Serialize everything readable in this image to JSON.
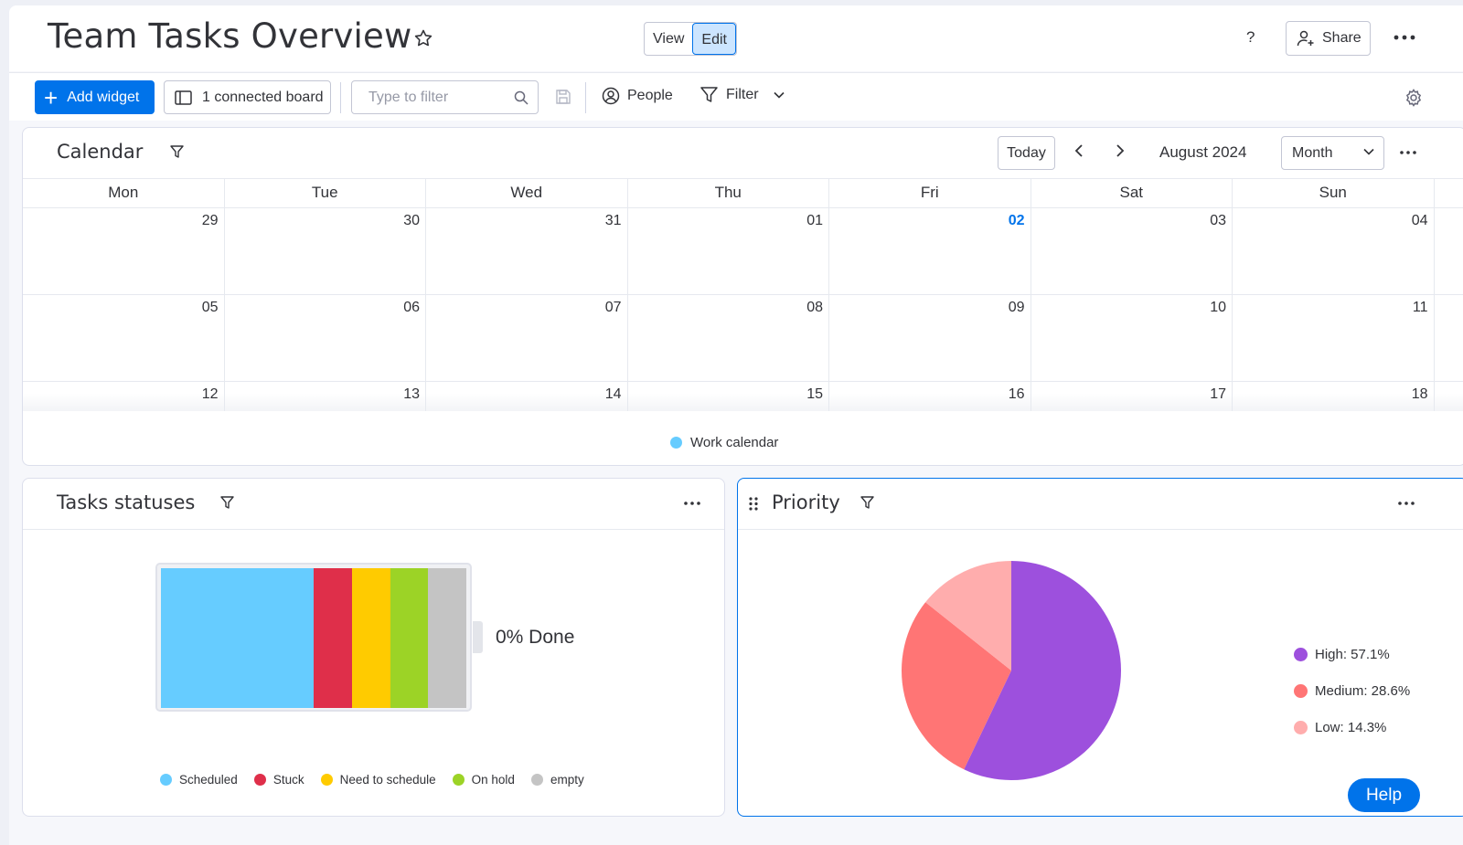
{
  "header": {
    "title": "Team Tasks Overview",
    "view_label": "View",
    "edit_label": "Edit",
    "help_label": "?",
    "share_label": "Share"
  },
  "toolbar": {
    "add_widget_label": "Add widget",
    "connected_board_label": "1 connected board",
    "filter_placeholder": "Type to filter",
    "people_label": "People",
    "filter_label": "Filter"
  },
  "calendar": {
    "title": "Calendar",
    "today_label": "Today",
    "month_label": "August 2024",
    "view_select": "Month",
    "weekdays": [
      "Mon",
      "Tue",
      "Wed",
      "Thu",
      "Fri",
      "Sat",
      "Sun"
    ],
    "weeks": [
      [
        "29",
        "30",
        "31",
        "01",
        "02",
        "03",
        "04"
      ],
      [
        "05",
        "06",
        "07",
        "08",
        "09",
        "10",
        "11"
      ],
      [
        "12",
        "13",
        "14",
        "15",
        "16",
        "17",
        "18"
      ]
    ],
    "today_day": "02",
    "legend": {
      "label": "Work calendar",
      "color": "#66ccff"
    }
  },
  "tasks_statuses": {
    "title": "Tasks statuses",
    "done_label": "0% Done",
    "segments": [
      {
        "label": "Scheduled",
        "color": "#66ccff",
        "fraction": 0.5
      },
      {
        "label": "Stuck",
        "color": "#df2f4a",
        "fraction": 0.125
      },
      {
        "label": "Need to schedule",
        "color": "#ffcb00",
        "fraction": 0.125
      },
      {
        "label": "On hold",
        "color": "#9cd326",
        "fraction": 0.125
      },
      {
        "label": "empty",
        "color": "#c4c4c4",
        "fraction": 0.125
      }
    ]
  },
  "priority": {
    "title": "Priority",
    "chart_data": {
      "type": "pie",
      "slices": [
        {
          "label": "High",
          "value": 57.1,
          "color": "#9d50dd"
        },
        {
          "label": "Medium",
          "value": 28.6,
          "color": "#ff7575"
        },
        {
          "label": "Low",
          "value": 14.3,
          "color": "#ffadad"
        }
      ],
      "legend_labels": [
        "High: 57.1%",
        "Medium: 28.6%",
        "Low: 14.3%"
      ],
      "legend_position": "right"
    }
  },
  "help_button_label": "Help"
}
